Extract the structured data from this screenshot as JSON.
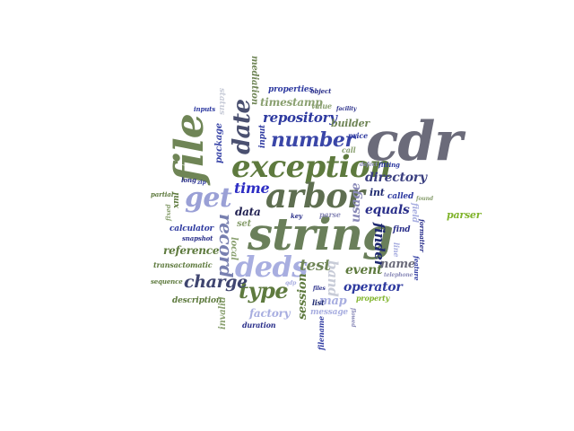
{
  "word_cloud": {
    "words": [
      {
        "text": "cdr",
        "color": "#6b6b7a"
      },
      {
        "text": "string",
        "color": "#6a7f5a"
      },
      {
        "text": "exception",
        "color": "#5e7a3e"
      },
      {
        "text": "arbor",
        "color": "#5e6e50"
      },
      {
        "text": "file",
        "color": "#6f8556"
      },
      {
        "text": "deds",
        "color": "#a8aee0"
      },
      {
        "text": "get",
        "color": "#9aa0d6"
      },
      {
        "text": "number",
        "color": "#3a46a8"
      },
      {
        "text": "date",
        "color": "#4a5070"
      },
      {
        "text": "type",
        "color": "#5e7a3e"
      },
      {
        "text": "record",
        "color": "#7880b0"
      },
      {
        "text": "charge",
        "color": "#3f4570"
      },
      {
        "text": "repository",
        "color": "#2e3aa0"
      },
      {
        "text": "time",
        "color": "#2d2dc4"
      },
      {
        "text": "timestamp",
        "color": "#8aa070"
      },
      {
        "text": "test",
        "color": "#6f8556"
      },
      {
        "text": "equals",
        "color": "#2a2f8a"
      },
      {
        "text": "directory",
        "color": "#3a3f80"
      },
      {
        "text": "operator",
        "color": "#2e3aa0"
      },
      {
        "text": "finder",
        "color": "#1f2a70"
      },
      {
        "text": "event",
        "color": "#5e7a3e"
      },
      {
        "text": "name",
        "color": "#6b6b7a"
      },
      {
        "text": "session",
        "color": "#5e7a3e"
      },
      {
        "text": "map",
        "color": "#a8aee0"
      },
      {
        "text": "band",
        "color": "#c8ccd8"
      },
      {
        "text": "usage",
        "color": "#8a8ab8"
      },
      {
        "text": "reference",
        "color": "#5e7a3e"
      },
      {
        "text": "factory",
        "color": "#a8aee0"
      },
      {
        "text": "builder",
        "color": "#6f8556"
      },
      {
        "text": "parser",
        "color": "#7fb32a"
      },
      {
        "text": "data",
        "color": "#1f1f50"
      },
      {
        "text": "int",
        "color": "#1f2a70"
      },
      {
        "text": "package",
        "color": "#3a46a8"
      },
      {
        "text": "mediation",
        "color": "#6f8556"
      },
      {
        "text": "properties",
        "color": "#2e3aa0"
      },
      {
        "text": "calculator",
        "color": "#2e3aa0"
      },
      {
        "text": "description",
        "color": "#5e7a3e"
      },
      {
        "text": "message",
        "color": "#a8aee0"
      },
      {
        "text": "set",
        "color": "#8aa070"
      },
      {
        "text": "local",
        "color": "#8aa070"
      },
      {
        "text": "invalid",
        "color": "#8aa070"
      },
      {
        "text": "input",
        "color": "#2e3aa0"
      },
      {
        "text": "status",
        "color": "#c8ccd8"
      },
      {
        "text": "value",
        "color": "#8aa070"
      },
      {
        "text": "object",
        "color": "#2a2f8a"
      },
      {
        "text": "price",
        "color": "#2e3aa0"
      },
      {
        "text": "facility",
        "color": "#2a2f8a"
      },
      {
        "text": "call",
        "color": "#8aa070"
      },
      {
        "text": "defect",
        "color": "#8a8ab8"
      },
      {
        "text": "fitting",
        "color": "#2e3aa0"
      },
      {
        "text": "called",
        "color": "#2e3aa0"
      },
      {
        "text": "found",
        "color": "#8aa070"
      },
      {
        "text": "field",
        "color": "#a8aee0"
      },
      {
        "text": "find",
        "color": "#2a2f8a"
      },
      {
        "text": "line",
        "color": "#a8aee0"
      },
      {
        "text": "formatter",
        "color": "#2a2f8a"
      },
      {
        "text": "feature",
        "color": "#2e3aa0"
      },
      {
        "text": "telephone",
        "color": "#8a8ab8"
      },
      {
        "text": "property",
        "color": "#7fb32a"
      },
      {
        "text": "files",
        "color": "#2a2f8a"
      },
      {
        "text": "list",
        "color": "#1f2a70"
      },
      {
        "text": "filename",
        "color": "#2e3aa0"
      },
      {
        "text": "flowed",
        "color": "#8a8ab8"
      },
      {
        "text": "duration",
        "color": "#2a2f8a"
      },
      {
        "text": "key",
        "color": "#2a2f8a"
      },
      {
        "text": "parse",
        "color": "#8a8ab8"
      },
      {
        "text": "zip",
        "color": "#2e3aa0"
      },
      {
        "text": "long",
        "color": "#2a2f8a"
      },
      {
        "text": "partial",
        "color": "#5e7a3e"
      },
      {
        "text": "xml",
        "color": "#5e7a3e"
      },
      {
        "text": "fixed",
        "color": "#8aa070"
      },
      {
        "text": "snapshot",
        "color": "#2a2f8a"
      },
      {
        "text": "transactomatic",
        "color": "#5e7a3e"
      },
      {
        "text": "sequence",
        "color": "#5e7a3e"
      },
      {
        "text": "qdp",
        "color": "#a8aee0"
      },
      {
        "text": "inputs",
        "color": "#2e3aa0"
      }
    ]
  }
}
